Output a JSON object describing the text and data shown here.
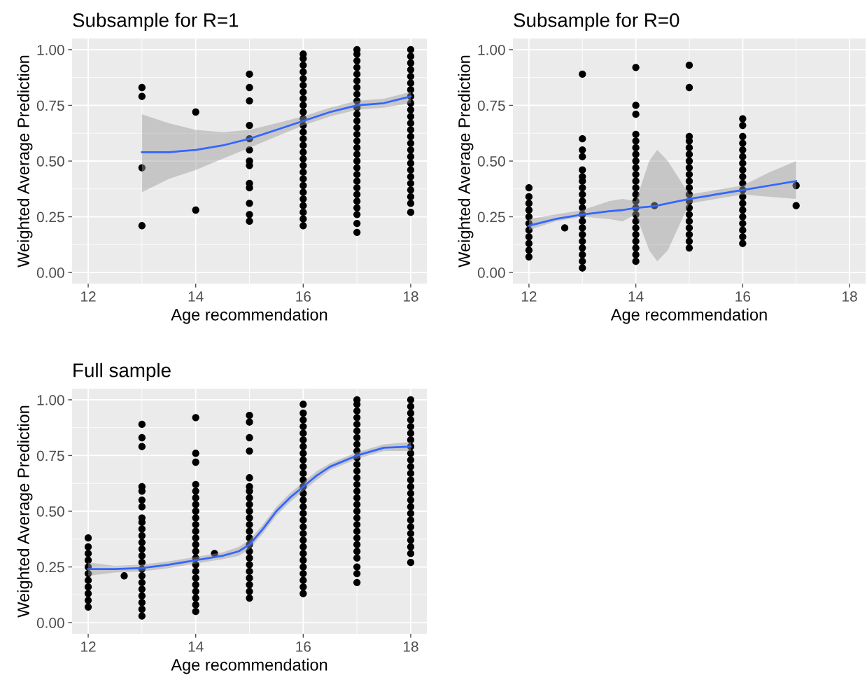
{
  "chart_data": [
    {
      "type": "scatter",
      "title": "Subsample for R=1",
      "xlabel": "Age recommendation",
      "ylabel": "Weighted Average Prediction",
      "xlim": [
        11.7,
        18.3
      ],
      "ylim": [
        -0.05,
        1.05
      ],
      "xticks": [
        12,
        14,
        16,
        18
      ],
      "yticks": [
        {
          "value": 0,
          "label": "0.00"
        },
        {
          "value": 0.25,
          "label": "0.25"
        },
        {
          "value": 0.5,
          "label": "0.50"
        },
        {
          "value": 0.75,
          "label": "0.75"
        },
        {
          "value": 1,
          "label": "1.00"
        }
      ],
      "grid": true,
      "marker": "circle",
      "series": [
        {
          "color": "#000000",
          "x": [
            13,
            13,
            13,
            13
          ],
          "values": [
            0.21,
            0.47,
            0.79,
            0.83
          ]
        },
        {
          "color": "#000000",
          "x": [
            14,
            14
          ],
          "values": [
            0.28,
            0.72
          ]
        },
        {
          "color": "#000000",
          "x": [
            15,
            15,
            15,
            15,
            15,
            15,
            15,
            15,
            15,
            15,
            15,
            15,
            15
          ],
          "values": [
            0.23,
            0.26,
            0.31,
            0.38,
            0.4,
            0.48,
            0.5,
            0.55,
            0.6,
            0.66,
            0.77,
            0.83,
            0.89
          ]
        },
        {
          "color": "#000000",
          "x": [
            16,
            16,
            16,
            16,
            16,
            16,
            16,
            16,
            16,
            16,
            16,
            16,
            16,
            16,
            16,
            16,
            16,
            16,
            16,
            16,
            16,
            16,
            16,
            16,
            16,
            16,
            16
          ],
          "values": [
            0.21,
            0.24,
            0.27,
            0.3,
            0.33,
            0.36,
            0.39,
            0.42,
            0.45,
            0.48,
            0.51,
            0.54,
            0.57,
            0.6,
            0.63,
            0.66,
            0.69,
            0.72,
            0.75,
            0.78,
            0.81,
            0.84,
            0.87,
            0.9,
            0.93,
            0.96,
            0.98
          ]
        },
        {
          "color": "#000000",
          "x": [
            17,
            17,
            17,
            17,
            17,
            17,
            17,
            17,
            17,
            17,
            17,
            17,
            17,
            17,
            17,
            17,
            17,
            17,
            17,
            17,
            17,
            17,
            17,
            17,
            17,
            17,
            17,
            17
          ],
          "values": [
            0.18,
            0.22,
            0.26,
            0.29,
            0.32,
            0.35,
            0.38,
            0.41,
            0.44,
            0.47,
            0.5,
            0.53,
            0.56,
            0.59,
            0.62,
            0.65,
            0.68,
            0.71,
            0.74,
            0.77,
            0.8,
            0.83,
            0.86,
            0.89,
            0.92,
            0.95,
            0.98,
            1.0
          ]
        },
        {
          "color": "#000000",
          "x": [
            18,
            18,
            18,
            18,
            18,
            18,
            18,
            18,
            18,
            18,
            18,
            18,
            18,
            18,
            18,
            18,
            18,
            18,
            18,
            18,
            18,
            18,
            18,
            18,
            18
          ],
          "values": [
            0.27,
            0.31,
            0.34,
            0.37,
            0.4,
            0.43,
            0.46,
            0.49,
            0.52,
            0.55,
            0.58,
            0.61,
            0.64,
            0.67,
            0.7,
            0.73,
            0.76,
            0.79,
            0.82,
            0.85,
            0.88,
            0.91,
            0.94,
            0.97,
            1.0
          ]
        },
        {
          "type": "line",
          "marker": "none",
          "color": "#3366ff",
          "x": [
            13,
            13.5,
            14,
            14.5,
            15,
            15.5,
            16,
            16.5,
            17,
            17.5,
            18
          ],
          "values": [
            0.54,
            0.54,
            0.55,
            0.57,
            0.6,
            0.64,
            0.68,
            0.72,
            0.75,
            0.76,
            0.79
          ],
          "lower": [
            0.36,
            0.42,
            0.46,
            0.51,
            0.56,
            0.61,
            0.66,
            0.7,
            0.73,
            0.74,
            0.76
          ],
          "upper": [
            0.71,
            0.67,
            0.64,
            0.63,
            0.64,
            0.67,
            0.7,
            0.74,
            0.77,
            0.78,
            0.81
          ]
        }
      ]
    },
    {
      "type": "scatter",
      "title": "Subsample for R=0",
      "xlabel": "Age recommendation",
      "ylabel": "Weighted Average Prediction",
      "xlim": [
        11.7,
        18.3
      ],
      "ylim": [
        -0.05,
        1.05
      ],
      "xticks": [
        12,
        14,
        16,
        18
      ],
      "yticks": [
        {
          "value": 0,
          "label": "0.00"
        },
        {
          "value": 0.25,
          "label": "0.25"
        },
        {
          "value": 0.5,
          "label": "0.50"
        },
        {
          "value": 0.75,
          "label": "0.75"
        },
        {
          "value": 1,
          "label": "1.00"
        }
      ],
      "grid": true,
      "marker": "circle",
      "series": [
        {
          "color": "#000000",
          "x": [
            12,
            12,
            12,
            12,
            12,
            12,
            12,
            12,
            12,
            12,
            12
          ],
          "values": [
            0.07,
            0.1,
            0.13,
            0.16,
            0.19,
            0.22,
            0.25,
            0.28,
            0.31,
            0.34,
            0.38
          ]
        },
        {
          "color": "#000000",
          "x": [
            12.67
          ],
          "values": [
            0.2
          ]
        },
        {
          "color": "#000000",
          "x": [
            13,
            13,
            13,
            13,
            13,
            13,
            13,
            13,
            13,
            13,
            13,
            13,
            13,
            13,
            13,
            13,
            13,
            13,
            13,
            13
          ],
          "values": [
            0.02,
            0.05,
            0.08,
            0.11,
            0.14,
            0.17,
            0.2,
            0.23,
            0.26,
            0.29,
            0.32,
            0.35,
            0.38,
            0.41,
            0.43,
            0.46,
            0.52,
            0.55,
            0.6,
            0.89
          ]
        },
        {
          "color": "#000000",
          "x": [
            14,
            14,
            14,
            14,
            14,
            14,
            14,
            14,
            14,
            14,
            14,
            14,
            14,
            14,
            14,
            14,
            14,
            14,
            14,
            14,
            14,
            14,
            14
          ],
          "values": [
            0.05,
            0.08,
            0.11,
            0.14,
            0.17,
            0.2,
            0.23,
            0.26,
            0.29,
            0.32,
            0.35,
            0.38,
            0.41,
            0.44,
            0.47,
            0.5,
            0.53,
            0.56,
            0.59,
            0.62,
            0.71,
            0.75,
            0.92
          ]
        },
        {
          "color": "#000000",
          "x": [
            14.35
          ],
          "values": [
            0.3
          ]
        },
        {
          "color": "#000000",
          "x": [
            15,
            15,
            15,
            15,
            15,
            15,
            15,
            15,
            15,
            15,
            15,
            15,
            15,
            15,
            15,
            15,
            15,
            15,
            15,
            15
          ],
          "values": [
            0.11,
            0.14,
            0.17,
            0.2,
            0.23,
            0.26,
            0.29,
            0.32,
            0.35,
            0.38,
            0.41,
            0.44,
            0.47,
            0.5,
            0.53,
            0.56,
            0.59,
            0.61,
            0.83,
            0.93
          ]
        },
        {
          "color": "#000000",
          "x": [
            16,
            16,
            16,
            16,
            16,
            16,
            16,
            16,
            16,
            16,
            16,
            16,
            16,
            16,
            16,
            16,
            16,
            16,
            16
          ],
          "values": [
            0.13,
            0.16,
            0.19,
            0.22,
            0.25,
            0.28,
            0.31,
            0.34,
            0.37,
            0.4,
            0.43,
            0.46,
            0.49,
            0.52,
            0.55,
            0.58,
            0.61,
            0.66,
            0.69
          ]
        },
        {
          "color": "#000000",
          "x": [
            17,
            17
          ],
          "values": [
            0.3,
            0.39
          ]
        },
        {
          "type": "line",
          "marker": "none",
          "color": "#3366ff",
          "x": [
            12,
            12.5,
            13,
            13.5,
            13.75,
            14,
            14.25,
            14.4,
            14.6,
            15,
            15.5,
            16,
            16.5,
            17
          ],
          "values": [
            0.21,
            0.24,
            0.26,
            0.275,
            0.28,
            0.29,
            0.295,
            0.3,
            0.31,
            0.33,
            0.35,
            0.37,
            0.39,
            0.41
          ],
          "lower": [
            0.19,
            0.23,
            0.25,
            0.24,
            0.23,
            0.26,
            0.1,
            0.05,
            0.1,
            0.31,
            0.33,
            0.35,
            0.34,
            0.33
          ],
          "upper": [
            0.24,
            0.26,
            0.28,
            0.32,
            0.33,
            0.32,
            0.5,
            0.55,
            0.5,
            0.35,
            0.37,
            0.39,
            0.45,
            0.5
          ]
        }
      ]
    },
    {
      "type": "scatter",
      "title": "Full sample",
      "xlabel": "Age recommendation",
      "ylabel": "Weighted Average Prediction",
      "xlim": [
        11.7,
        18.3
      ],
      "ylim": [
        -0.05,
        1.05
      ],
      "xticks": [
        12,
        14,
        16,
        18
      ],
      "yticks": [
        {
          "value": 0,
          "label": "0.00"
        },
        {
          "value": 0.25,
          "label": "0.25"
        },
        {
          "value": 0.5,
          "label": "0.50"
        },
        {
          "value": 0.75,
          "label": "0.75"
        },
        {
          "value": 1,
          "label": "1.00"
        }
      ],
      "grid": true,
      "marker": "circle",
      "series": [
        {
          "color": "#000000",
          "x": [
            12,
            12,
            12,
            12,
            12,
            12,
            12,
            12,
            12,
            12,
            12
          ],
          "values": [
            0.07,
            0.1,
            0.13,
            0.16,
            0.19,
            0.22,
            0.25,
            0.28,
            0.31,
            0.34,
            0.38
          ]
        },
        {
          "color": "#000000",
          "x": [
            12.67
          ],
          "values": [
            0.21
          ]
        },
        {
          "color": "#000000",
          "x": [
            13,
            13,
            13,
            13,
            13,
            13,
            13,
            13,
            13,
            13,
            13,
            13,
            13,
            13,
            13,
            13,
            13,
            13,
            13,
            13,
            13,
            13,
            13
          ],
          "values": [
            0.03,
            0.06,
            0.09,
            0.12,
            0.15,
            0.18,
            0.21,
            0.24,
            0.27,
            0.3,
            0.33,
            0.36,
            0.39,
            0.42,
            0.45,
            0.47,
            0.52,
            0.55,
            0.59,
            0.61,
            0.79,
            0.83,
            0.89
          ]
        },
        {
          "color": "#000000",
          "x": [
            14,
            14,
            14,
            14,
            14,
            14,
            14,
            14,
            14,
            14,
            14,
            14,
            14,
            14,
            14,
            14,
            14,
            14,
            14,
            14,
            14,
            14,
            14
          ],
          "values": [
            0.05,
            0.08,
            0.11,
            0.14,
            0.17,
            0.2,
            0.23,
            0.26,
            0.29,
            0.32,
            0.35,
            0.38,
            0.41,
            0.44,
            0.47,
            0.5,
            0.53,
            0.56,
            0.59,
            0.62,
            0.72,
            0.76,
            0.92
          ]
        },
        {
          "color": "#000000",
          "x": [
            14.35
          ],
          "values": [
            0.31
          ]
        },
        {
          "color": "#000000",
          "x": [
            15,
            15,
            15,
            15,
            15,
            15,
            15,
            15,
            15,
            15,
            15,
            15,
            15,
            15,
            15,
            15,
            15,
            15,
            15,
            15,
            15,
            15,
            15
          ],
          "values": [
            0.11,
            0.14,
            0.17,
            0.2,
            0.23,
            0.26,
            0.29,
            0.32,
            0.35,
            0.38,
            0.41,
            0.44,
            0.47,
            0.5,
            0.53,
            0.56,
            0.59,
            0.61,
            0.65,
            0.77,
            0.83,
            0.9,
            0.93
          ]
        },
        {
          "color": "#000000",
          "x": [
            16,
            16,
            16,
            16,
            16,
            16,
            16,
            16,
            16,
            16,
            16,
            16,
            16,
            16,
            16,
            16,
            16,
            16,
            16,
            16,
            16,
            16,
            16,
            16,
            16,
            16,
            16,
            16,
            16
          ],
          "values": [
            0.13,
            0.16,
            0.19,
            0.22,
            0.25,
            0.28,
            0.31,
            0.34,
            0.37,
            0.4,
            0.43,
            0.46,
            0.49,
            0.52,
            0.55,
            0.58,
            0.61,
            0.64,
            0.67,
            0.7,
            0.73,
            0.76,
            0.79,
            0.82,
            0.85,
            0.88,
            0.91,
            0.94,
            0.98
          ]
        },
        {
          "color": "#000000",
          "x": [
            17,
            17,
            17,
            17,
            17,
            17,
            17,
            17,
            17,
            17,
            17,
            17,
            17,
            17,
            17,
            17,
            17,
            17,
            17,
            17,
            17,
            17,
            17,
            17,
            17,
            17,
            17,
            17
          ],
          "values": [
            0.18,
            0.22,
            0.25,
            0.29,
            0.32,
            0.35,
            0.38,
            0.41,
            0.44,
            0.47,
            0.5,
            0.53,
            0.56,
            0.59,
            0.62,
            0.65,
            0.68,
            0.71,
            0.74,
            0.77,
            0.8,
            0.83,
            0.86,
            0.89,
            0.92,
            0.95,
            0.98,
            1.0
          ]
        },
        {
          "color": "#000000",
          "x": [
            18,
            18,
            18,
            18,
            18,
            18,
            18,
            18,
            18,
            18,
            18,
            18,
            18,
            18,
            18,
            18,
            18,
            18,
            18,
            18,
            18,
            18,
            18,
            18,
            18
          ],
          "values": [
            0.27,
            0.31,
            0.34,
            0.37,
            0.4,
            0.43,
            0.46,
            0.49,
            0.52,
            0.55,
            0.58,
            0.61,
            0.64,
            0.67,
            0.7,
            0.73,
            0.76,
            0.79,
            0.82,
            0.85,
            0.88,
            0.91,
            0.94,
            0.97,
            1.0
          ]
        },
        {
          "type": "line",
          "marker": "none",
          "color": "#3366ff",
          "x": [
            12,
            12.5,
            13,
            13.5,
            14,
            14.5,
            14.8,
            15,
            15.25,
            15.5,
            15.75,
            16,
            16.25,
            16.5,
            17,
            17.5,
            18
          ],
          "values": [
            0.24,
            0.24,
            0.245,
            0.26,
            0.28,
            0.3,
            0.32,
            0.35,
            0.42,
            0.5,
            0.56,
            0.61,
            0.66,
            0.7,
            0.75,
            0.785,
            0.79
          ],
          "lower": [
            0.21,
            0.225,
            0.23,
            0.245,
            0.265,
            0.285,
            0.3,
            0.33,
            0.4,
            0.48,
            0.54,
            0.59,
            0.64,
            0.685,
            0.735,
            0.77,
            0.77
          ],
          "upper": [
            0.27,
            0.255,
            0.26,
            0.275,
            0.295,
            0.315,
            0.34,
            0.37,
            0.44,
            0.52,
            0.58,
            0.63,
            0.68,
            0.715,
            0.765,
            0.8,
            0.81
          ]
        }
      ]
    }
  ]
}
